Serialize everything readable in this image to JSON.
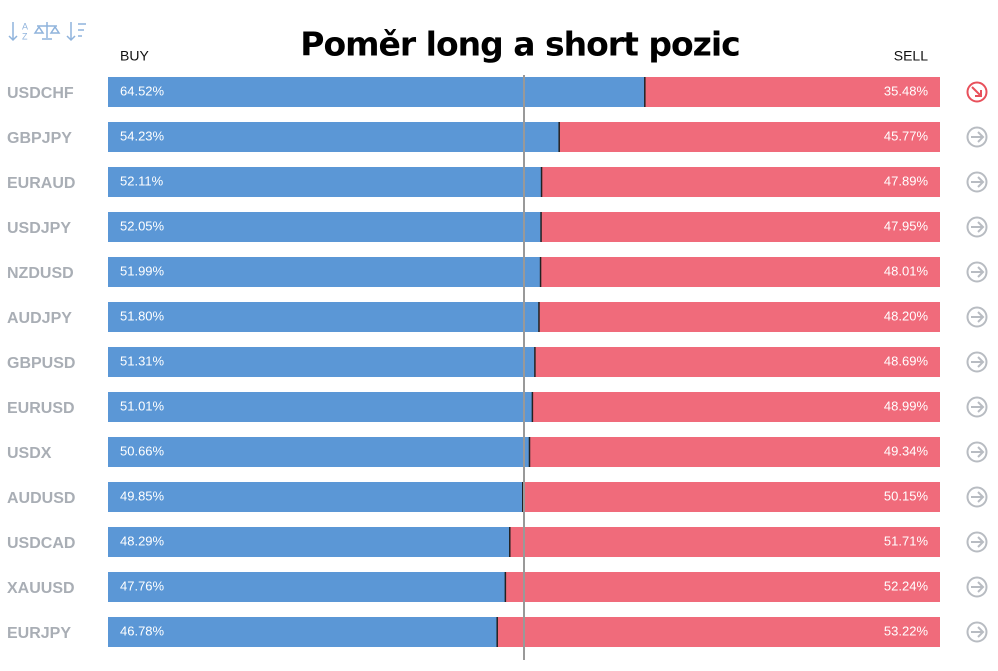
{
  "chart_data": {
    "type": "stacked-bar",
    "title": "Poměr long a short pozic",
    "categories": [
      "USDCHF",
      "GBPJPY",
      "EURAUD",
      "USDJPY",
      "NZDUSD",
      "AUDJPY",
      "GBPUSD",
      "EURUSD",
      "USDX",
      "AUDUSD",
      "USDCAD",
      "XAUUSD",
      "EURJPY"
    ],
    "series": [
      {
        "name": "BUY",
        "color": "#5b97d6",
        "values": [
          64.52,
          54.23,
          52.11,
          52.05,
          51.99,
          51.8,
          51.31,
          51.01,
          50.66,
          49.85,
          48.29,
          47.76,
          46.78
        ],
        "value_labels": [
          "64.52%",
          "54.23%",
          "52.11%",
          "52.05%",
          "51.99%",
          "51.80%",
          "51.31%",
          "51.01%",
          "50.66%",
          "49.85%",
          "48.29%",
          "47.76%",
          "46.78%"
        ]
      },
      {
        "name": "SELL",
        "color": "#f06b7b",
        "values": [
          35.48,
          45.77,
          47.89,
          47.95,
          48.01,
          48.2,
          48.69,
          48.99,
          49.34,
          50.15,
          51.71,
          52.24,
          53.22
        ],
        "value_labels": [
          "35.48%",
          "45.77%",
          "47.89%",
          "47.95%",
          "48.01%",
          "48.20%",
          "48.69%",
          "48.99%",
          "49.34%",
          "50.15%",
          "51.71%",
          "52.24%",
          "53.22%"
        ]
      }
    ],
    "xlim": [
      0,
      100
    ],
    "reference_line": 50,
    "signals": [
      "down",
      "flat",
      "flat",
      "flat",
      "flat",
      "flat",
      "flat",
      "flat",
      "flat",
      "flat",
      "flat",
      "flat",
      "flat"
    ]
  }
}
